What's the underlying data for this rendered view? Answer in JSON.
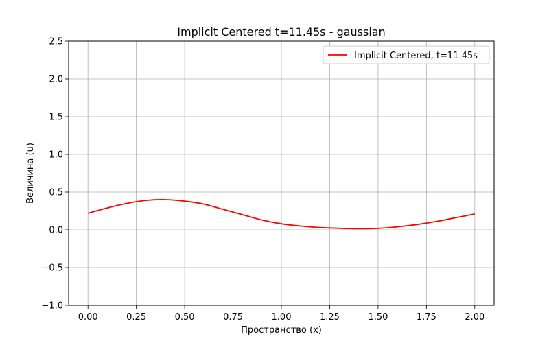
{
  "chart_data": {
    "type": "line",
    "title": "Implicit Centered t=11.45s - gaussian",
    "xlabel": "Пространство (x)",
    "ylabel": "Величина (u)",
    "xlim": [
      -0.1,
      2.1
    ],
    "ylim": [
      -1.0,
      2.5
    ],
    "xticks": [
      0.0,
      0.25,
      0.5,
      0.75,
      1.0,
      1.25,
      1.5,
      1.75,
      2.0
    ],
    "xtick_labels": [
      "0.00",
      "0.25",
      "0.50",
      "0.75",
      "1.00",
      "1.25",
      "1.50",
      "1.75",
      "2.00"
    ],
    "yticks": [
      -1.0,
      -0.5,
      0.0,
      0.5,
      1.0,
      1.5,
      2.0,
      2.5
    ],
    "ytick_labels": [
      "−1.0",
      "−0.5",
      "0.0",
      "0.5",
      "1.0",
      "1.5",
      "2.0",
      "2.5"
    ],
    "grid": true,
    "legend_position": "top-right",
    "series": [
      {
        "name": "Implicit Centered, t=11.45s",
        "color": "#ff0000",
        "x": [
          0.0,
          0.1,
          0.2,
          0.3,
          0.4,
          0.5,
          0.6,
          0.7,
          0.8,
          0.9,
          1.0,
          1.1,
          1.2,
          1.3,
          1.4,
          1.5,
          1.6,
          1.7,
          1.8,
          1.9,
          2.0
        ],
        "y": [
          0.22,
          0.29,
          0.35,
          0.39,
          0.4,
          0.38,
          0.34,
          0.27,
          0.2,
          0.13,
          0.08,
          0.05,
          0.03,
          0.02,
          0.015,
          0.02,
          0.04,
          0.07,
          0.11,
          0.16,
          0.21
        ]
      }
    ]
  }
}
